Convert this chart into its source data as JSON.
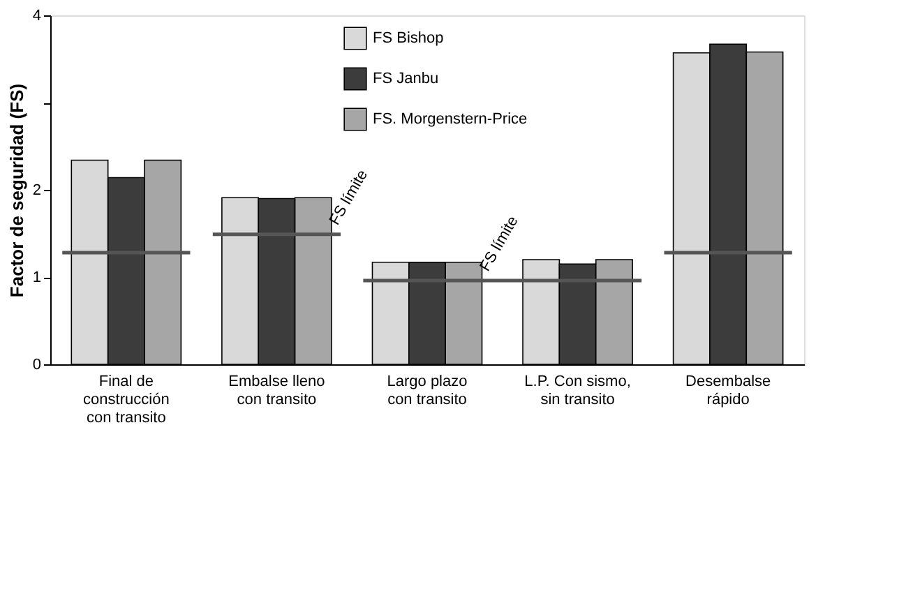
{
  "chart_data": {
    "type": "bar",
    "ylabel": "Factor de seguridad (FS)",
    "categories": [
      "Final de\nconstrucción\ncon transito",
      "Embalse lleno\ncon transito",
      "Largo plazo\ncon transito",
      "L.P. Con sismo,\nsin transito",
      "Desembalse\nrápido"
    ],
    "series": [
      {
        "name": "FS Bishop",
        "color": "#d9d9d9",
        "values": [
          2.34,
          1.91,
          1.17,
          1.2,
          3.57
        ]
      },
      {
        "name": "FS Janbu",
        "color": "#3c3c3c",
        "values": [
          2.14,
          1.9,
          1.17,
          1.15,
          3.67
        ]
      },
      {
        "name": "FS. Morgenstern-Price",
        "color": "#a6a6a6",
        "values": [
          2.34,
          1.91,
          1.17,
          1.2,
          3.58
        ]
      }
    ],
    "ref_lines": [
      {
        "axis": "y",
        "value": 1.28,
        "color": "#555555"
      },
      {
        "axis": "y",
        "value": 1.49,
        "label": "FS límite",
        "color": "#555555"
      },
      {
        "axis": "y",
        "value": 0.96,
        "label": "FS límite",
        "color": "#555555"
      }
    ],
    "ylim": [
      0,
      4
    ],
    "yticks": [
      0,
      1,
      2,
      {
        "value": 3,
        "label": null
      },
      4
    ],
    "grid": false,
    "legend": "top"
  }
}
